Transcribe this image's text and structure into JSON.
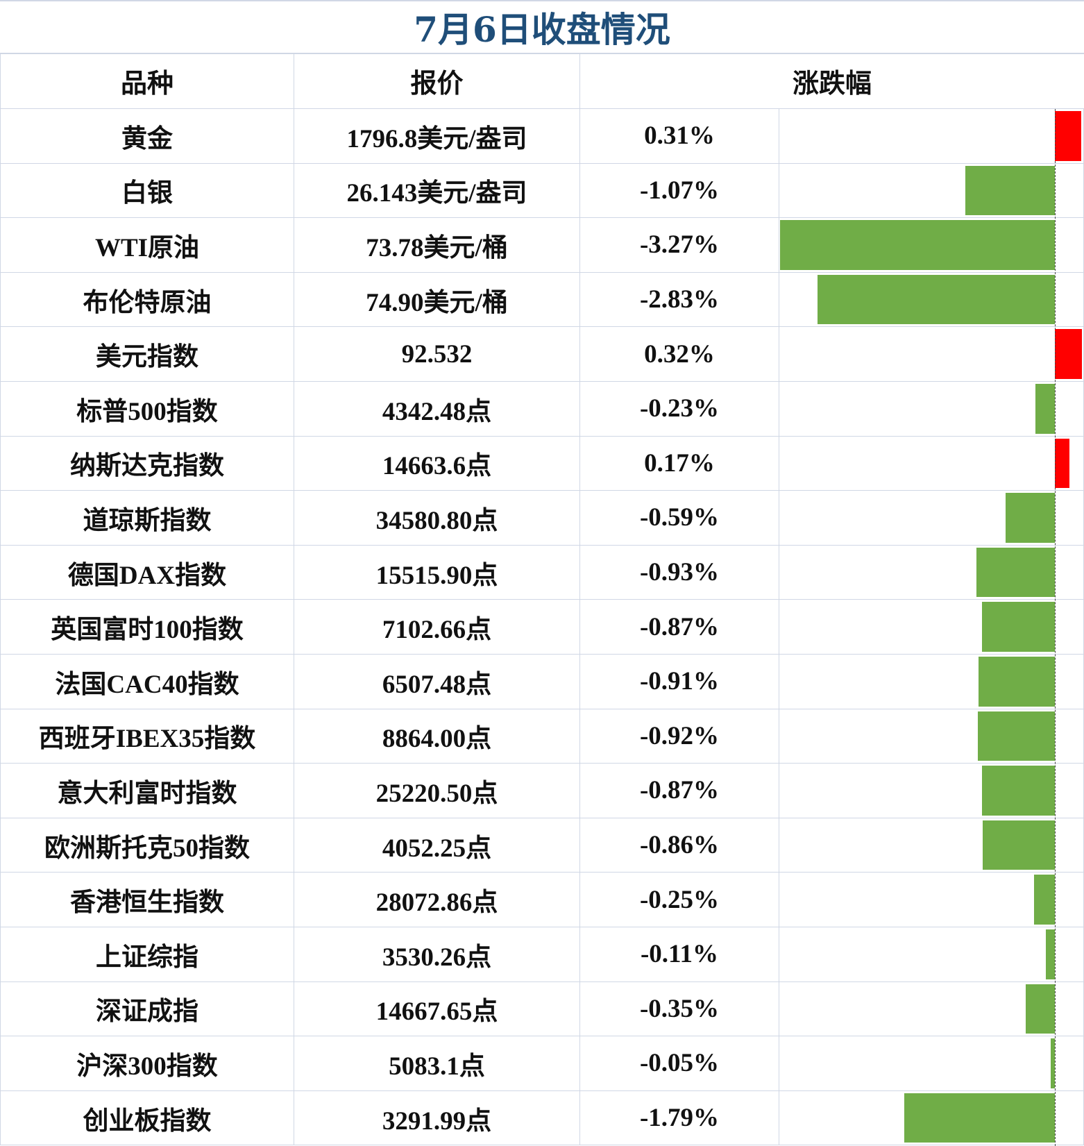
{
  "title": "7月6日收盘情况",
  "headers": {
    "name": "品种",
    "price": "报价",
    "change": "涨跌幅"
  },
  "colors": {
    "title": "#1f4e79",
    "up": "#ff0000",
    "down": "#70ad47",
    "grid": "#d0d7e5"
  },
  "rows": [
    {
      "name": "黄金",
      "price": "1796.8美元/盎司",
      "change_text": "0.31%",
      "change": 0.31
    },
    {
      "name": "白银",
      "price": "26.143美元/盎司",
      "change_text": "-1.07%",
      "change": -1.07
    },
    {
      "name": "WTI原油",
      "price": "73.78美元/桶",
      "change_text": "-3.27%",
      "change": -3.27
    },
    {
      "name": "布伦特原油",
      "price": "74.90美元/桶",
      "change_text": "-2.83%",
      "change": -2.83
    },
    {
      "name": "美元指数",
      "price": "92.532",
      "change_text": "0.32%",
      "change": 0.32
    },
    {
      "name": "标普500指数",
      "price": "4342.48点",
      "change_text": "-0.23%",
      "change": -0.23
    },
    {
      "name": "纳斯达克指数",
      "price": "14663.6点",
      "change_text": "0.17%",
      "change": 0.17
    },
    {
      "name": "道琼斯指数",
      "price": "34580.80点",
      "change_text": "-0.59%",
      "change": -0.59
    },
    {
      "name": "德国DAX指数",
      "price": "15515.90点",
      "change_text": "-0.93%",
      "change": -0.93
    },
    {
      "name": "英国富时100指数",
      "price": "7102.66点",
      "change_text": "-0.87%",
      "change": -0.87
    },
    {
      "name": "法国CAC40指数",
      "price": "6507.48点",
      "change_text": "-0.91%",
      "change": -0.91
    },
    {
      "name": "西班牙IBEX35指数",
      "price": "8864.00点",
      "change_text": "-0.92%",
      "change": -0.92
    },
    {
      "name": "意大利富时指数",
      "price": "25220.50点",
      "change_text": "-0.87%",
      "change": -0.87
    },
    {
      "name": "欧洲斯托克50指数",
      "price": "4052.25点",
      "change_text": "-0.86%",
      "change": -0.86
    },
    {
      "name": "香港恒生指数",
      "price": "28072.86点",
      "change_text": "-0.25%",
      "change": -0.25
    },
    {
      "name": "上证综指",
      "price": "3530.26点",
      "change_text": "-0.11%",
      "change": -0.11
    },
    {
      "name": "深证成指",
      "price": "14667.65点",
      "change_text": "-0.35%",
      "change": -0.35
    },
    {
      "name": "沪深300指数",
      "price": "5083.1点",
      "change_text": "-0.05%",
      "change": -0.05
    },
    {
      "name": "创业板指数",
      "price": "3291.99点",
      "change_text": "-1.79%",
      "change": -1.79
    }
  ]
}
